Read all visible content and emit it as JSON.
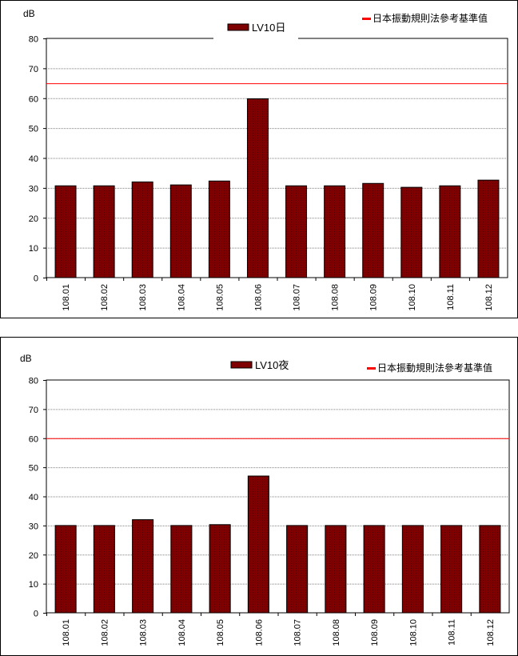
{
  "chart_data": [
    {
      "type": "bar",
      "ylabel": "dB",
      "ylim": [
        0,
        80
      ],
      "yticks": [
        0,
        10,
        20,
        30,
        40,
        50,
        60,
        70,
        80
      ],
      "categories": [
        "108.01",
        "108.02",
        "108.03",
        "108.04",
        "108.05",
        "108.06",
        "108.07",
        "108.08",
        "108.09",
        "108.10",
        "108.11",
        "108.12"
      ],
      "series": [
        {
          "name": "LV10日",
          "color": "#7f0000",
          "values": [
            30.7,
            30.7,
            32.0,
            31.0,
            32.3,
            59.8,
            30.7,
            30.7,
            31.5,
            30.2,
            30.7,
            32.6
          ]
        }
      ],
      "reference_line": {
        "name": "日本振動規則法參考基準值",
        "value": 65,
        "color": "#ff0000"
      },
      "grid": true,
      "legend_position": "top"
    },
    {
      "type": "bar",
      "ylabel": "dB",
      "ylim": [
        0,
        80
      ],
      "yticks": [
        0,
        10,
        20,
        30,
        40,
        50,
        60,
        70,
        80
      ],
      "categories": [
        "108.01",
        "108.02",
        "108.03",
        "108.04",
        "108.05",
        "108.06",
        "108.07",
        "108.08",
        "108.09",
        "108.10",
        "108.11",
        "108.12"
      ],
      "series": [
        {
          "name": "LV10夜",
          "color": "#7f0000",
          "values": [
            30.0,
            30.0,
            32.0,
            30.0,
            30.3,
            47.0,
            30.0,
            30.0,
            30.0,
            30.0,
            30.0,
            30.0
          ]
        }
      ],
      "reference_line": {
        "name": "日本振動規則法參考基準值",
        "value": 60,
        "color": "#ff0000"
      },
      "grid": true,
      "legend_position": "top"
    }
  ]
}
